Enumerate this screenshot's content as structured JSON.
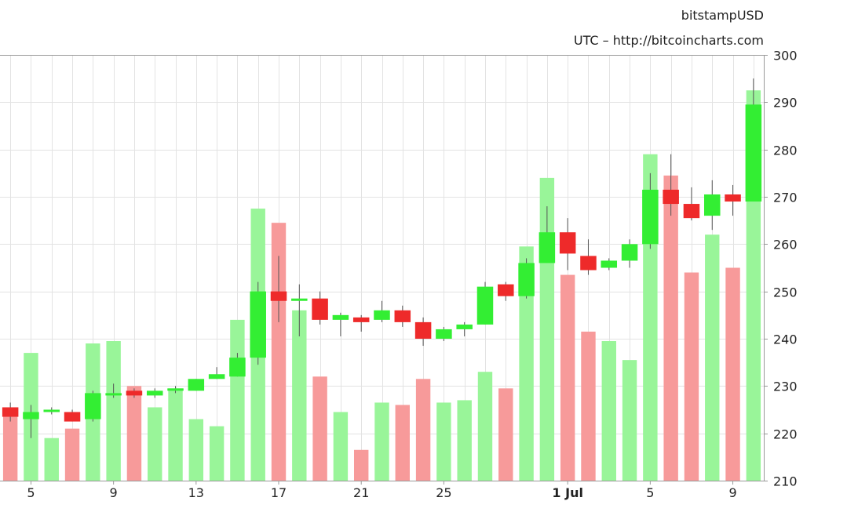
{
  "header": {
    "line1": "bitstampUSD",
    "line2": "UTC – http://bitcoincharts.com"
  },
  "chart_data": {
    "type": "candlestick",
    "y_axis": {
      "position": "right",
      "range": [
        210,
        300
      ],
      "ticks": [
        210,
        220,
        230,
        240,
        250,
        260,
        270,
        280,
        290,
        300
      ]
    },
    "x_axis": {
      "ticks": [
        {
          "label": "5",
          "bold": false,
          "index": 1
        },
        {
          "label": "9",
          "bold": false,
          "index": 5
        },
        {
          "label": "13",
          "bold": false,
          "index": 9
        },
        {
          "label": "17",
          "bold": false,
          "index": 13
        },
        {
          "label": "21",
          "bold": false,
          "index": 17
        },
        {
          "label": "25",
          "bold": false,
          "index": 21
        },
        {
          "label": "1 Jul",
          "bold": true,
          "index": 27
        },
        {
          "label": "5",
          "bold": false,
          "index": 31
        },
        {
          "label": "9",
          "bold": false,
          "index": 35
        }
      ]
    },
    "grid": true,
    "colors": {
      "up": "#33ee33",
      "down": "#ee2a2a",
      "vol_up": "#99f599",
      "vol_down": "#f79a9a",
      "grid": "#e3e3e3",
      "axis": "#999999"
    },
    "candles": [
      {
        "open": 225.5,
        "high": 226.5,
        "low": 222.5,
        "close": 223.5,
        "vol": 225.5
      },
      {
        "open": 223,
        "high": 226,
        "low": 219,
        "close": 224.5,
        "vol": 237
      },
      {
        "open": 224.5,
        "high": 225.5,
        "low": 224,
        "close": 225,
        "vol": 219
      },
      {
        "open": 224.5,
        "high": 225,
        "low": 222.5,
        "close": 222.5,
        "vol": 221
      },
      {
        "open": 223,
        "high": 229,
        "low": 222.5,
        "close": 228.5,
        "vol": 239
      },
      {
        "open": 228,
        "high": 230.5,
        "low": 227.5,
        "close": 228.5,
        "vol": 239.5
      },
      {
        "open": 229,
        "high": 229.5,
        "low": 227.5,
        "close": 228,
        "vol": 230
      },
      {
        "open": 228,
        "high": 229.5,
        "low": 227.5,
        "close": 229,
        "vol": 225.5
      },
      {
        "open": 229,
        "high": 230,
        "low": 228.5,
        "close": 229.5,
        "vol": 229.5
      },
      {
        "open": 229,
        "high": 231.5,
        "low": 229,
        "close": 231.5,
        "vol": 223
      },
      {
        "open": 231.5,
        "high": 234,
        "low": 231.5,
        "close": 232.5,
        "vol": 221.5
      },
      {
        "open": 232,
        "high": 237,
        "low": 232,
        "close": 236,
        "vol": 244
      },
      {
        "open": 236,
        "high": 252,
        "low": 234.5,
        "close": 250,
        "vol": 267.5
      },
      {
        "open": 250,
        "high": 257.5,
        "low": 243.5,
        "close": 248,
        "vol": 264.5
      },
      {
        "open": 248,
        "high": 251.5,
        "low": 240.5,
        "close": 248.5,
        "vol": 246
      },
      {
        "open": 248.5,
        "high": 250,
        "low": 243,
        "close": 244,
        "vol": 232
      },
      {
        "open": 244,
        "high": 245.5,
        "low": 240.5,
        "close": 245,
        "vol": 224.5
      },
      {
        "open": 244.5,
        "high": 245,
        "low": 241.5,
        "close": 243.5,
        "vol": 216.5
      },
      {
        "open": 244,
        "high": 248,
        "low": 243.5,
        "close": 246,
        "vol": 226.5
      },
      {
        "open": 246,
        "high": 247,
        "low": 242.5,
        "close": 243.5,
        "vol": 226
      },
      {
        "open": 243.5,
        "high": 244.5,
        "low": 238.5,
        "close": 240,
        "vol": 231.5
      },
      {
        "open": 240,
        "high": 242.5,
        "low": 239.5,
        "close": 242,
        "vol": 226.5
      },
      {
        "open": 242,
        "high": 243.5,
        "low": 240.5,
        "close": 243,
        "vol": 227
      },
      {
        "open": 243,
        "high": 252,
        "low": 243,
        "close": 251,
        "vol": 233
      },
      {
        "open": 251.5,
        "high": 252,
        "low": 248,
        "close": 249,
        "vol": 229.5
      },
      {
        "open": 249,
        "high": 257,
        "low": 248.5,
        "close": 256,
        "vol": 259.5
      },
      {
        "open": 256,
        "high": 268,
        "low": 256,
        "close": 262.5,
        "vol": 274
      },
      {
        "open": 262.5,
        "high": 265.5,
        "low": 254.5,
        "close": 258,
        "vol": 253.5
      },
      {
        "open": 257.5,
        "high": 261,
        "low": 253.5,
        "close": 254.5,
        "vol": 241.5
      },
      {
        "open": 255,
        "high": 257,
        "low": 254.5,
        "close": 256.5,
        "vol": 239.5
      },
      {
        "open": 256.5,
        "high": 261,
        "low": 255,
        "close": 260,
        "vol": 235.5
      },
      {
        "open": 260,
        "high": 275,
        "low": 259,
        "close": 271.5,
        "vol": 279
      },
      {
        "open": 271.5,
        "high": 279,
        "low": 266,
        "close": 268.5,
        "vol": 274.5
      },
      {
        "open": 268.5,
        "high": 272,
        "low": 265,
        "close": 265.5,
        "vol": 254
      },
      {
        "open": 266,
        "high": 273.5,
        "low": 263,
        "close": 270.5,
        "vol": 262
      },
      {
        "open": 270.5,
        "high": 272.5,
        "low": 266,
        "close": 269,
        "vol": 255
      },
      {
        "open": 269,
        "high": 295,
        "low": 269,
        "close": 289.5,
        "vol": 292.5
      }
    ]
  }
}
